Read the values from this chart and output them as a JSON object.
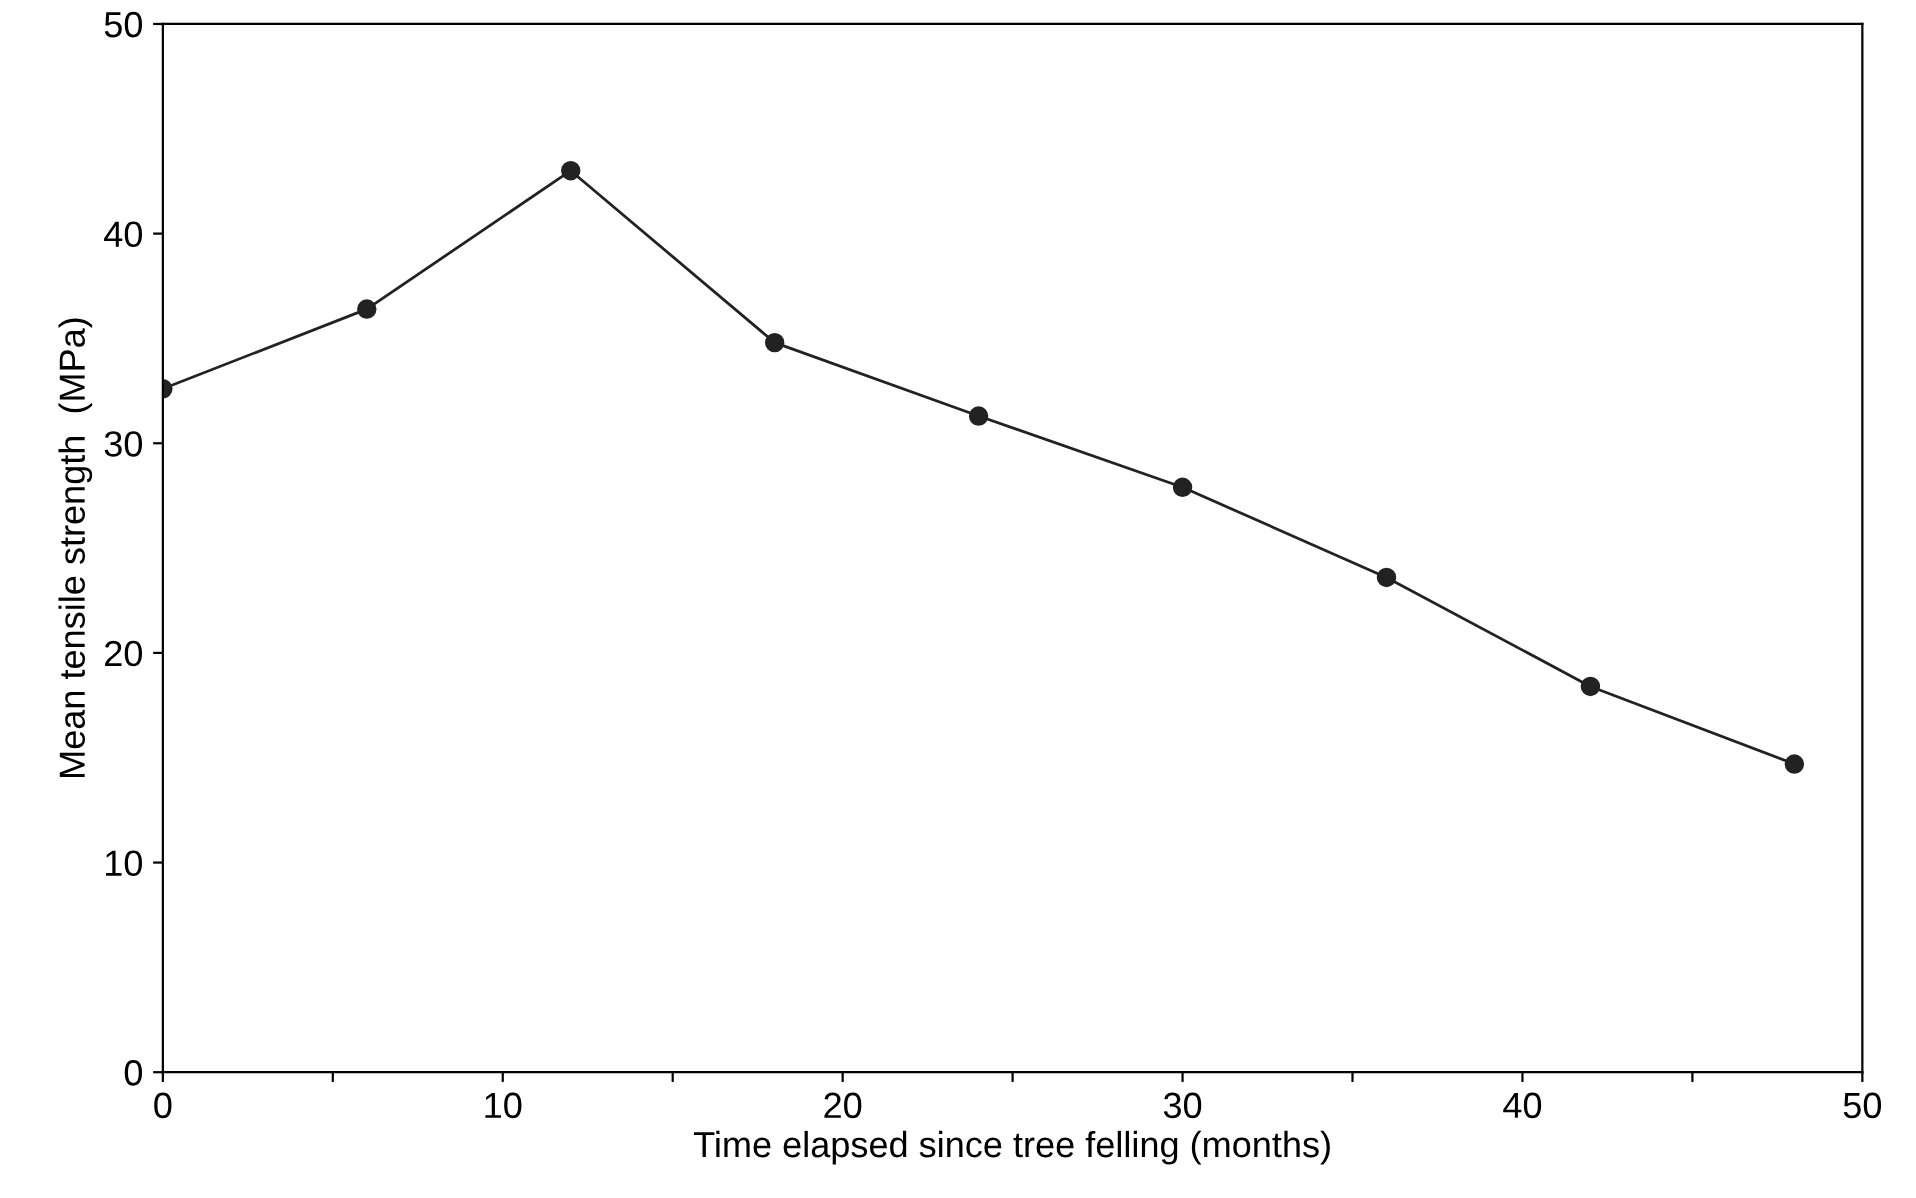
{
  "chart_data": {
    "type": "line",
    "xlabel": "Time elapsed since tree felling (months)",
    "ylabel": "Mean tensile strength  (MPa)",
    "x": [
      0,
      6,
      12,
      18,
      24,
      30,
      36,
      42,
      48
    ],
    "series": [
      {
        "color": "#222222",
        "values": [
          32.6,
          36.4,
          43.0,
          34.8,
          31.3,
          27.9,
          23.6,
          18.4,
          14.7
        ]
      }
    ],
    "xlim": [
      0,
      50
    ],
    "ylim": [
      0,
      50
    ],
    "xticks": [
      0,
      {
        "value": 5,
        "label": null
      },
      10,
      {
        "value": 15,
        "label": null
      },
      20,
      {
        "value": 25,
        "label": null
      },
      30,
      {
        "value": 35,
        "label": null
      },
      40,
      {
        "value": 45,
        "label": null
      },
      50
    ],
    "yticks": [
      0,
      10,
      20,
      30,
      40,
      50
    ],
    "marker": "circle",
    "line_style": "solid",
    "grid": false,
    "legend": false
  }
}
